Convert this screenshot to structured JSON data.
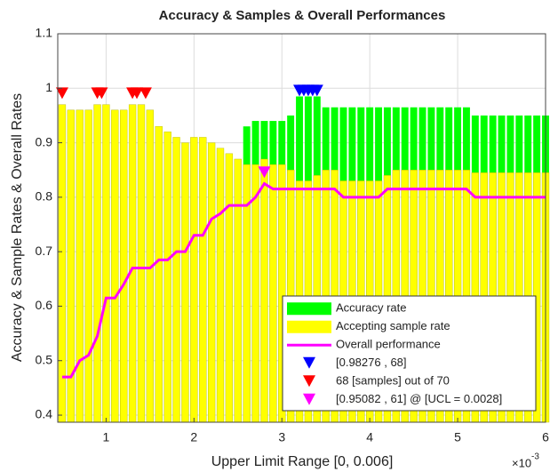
{
  "chart_data": {
    "type": "bar",
    "title": "Accuracy & Samples & Overall Performances",
    "xlabel": "Upper Limit Range [0, 0.006]",
    "ylabel": "Accuracy & Sample Rates & Overall Rates",
    "x_multiplier": {
      "base": "×10",
      "exponent": "-3"
    },
    "x": [
      0.5,
      0.6,
      0.7,
      0.8,
      0.9,
      1.0,
      1.1,
      1.2,
      1.3,
      1.4,
      1.5,
      1.6,
      1.7,
      1.8,
      1.9,
      2.0,
      2.1,
      2.2,
      2.3,
      2.4,
      2.5,
      2.6,
      2.7,
      2.8,
      2.9,
      3.0,
      3.1,
      3.2,
      3.3,
      3.4,
      3.5,
      3.6,
      3.7,
      3.8,
      3.9,
      4.0,
      4.1,
      4.2,
      4.3,
      4.4,
      4.5,
      4.6,
      4.7,
      4.8,
      4.9,
      5.0,
      5.1,
      5.2,
      5.3,
      5.4,
      5.5,
      5.6,
      5.7,
      5.8,
      5.9,
      6.0
    ],
    "series": [
      {
        "name": "Accuracy rate",
        "type": "bar",
        "color": "#00ff00",
        "values": [
          0.85,
          0.85,
          0.85,
          0.85,
          0.85,
          0.85,
          0.85,
          0.85,
          0.85,
          0.85,
          0.85,
          0.85,
          0.85,
          0.85,
          0.85,
          0.85,
          0.85,
          0.85,
          0.85,
          0.85,
          0.85,
          0.93,
          0.94,
          0.94,
          0.94,
          0.94,
          0.95,
          0.985,
          0.985,
          0.985,
          0.965,
          0.965,
          0.965,
          0.965,
          0.965,
          0.965,
          0.965,
          0.965,
          0.965,
          0.965,
          0.965,
          0.965,
          0.965,
          0.965,
          0.965,
          0.965,
          0.965,
          0.95,
          0.95,
          0.95,
          0.95,
          0.95,
          0.95,
          0.95,
          0.95,
          0.95
        ]
      },
      {
        "name": "Accepting sample rate",
        "type": "bar",
        "color": "#ffff00",
        "values": [
          0.97,
          0.96,
          0.96,
          0.96,
          0.97,
          0.97,
          0.96,
          0.96,
          0.97,
          0.97,
          0.96,
          0.93,
          0.92,
          0.91,
          0.9,
          0.91,
          0.91,
          0.9,
          0.89,
          0.88,
          0.87,
          0.86,
          0.86,
          0.87,
          0.86,
          0.86,
          0.85,
          0.83,
          0.83,
          0.84,
          0.85,
          0.85,
          0.83,
          0.83,
          0.83,
          0.83,
          0.83,
          0.84,
          0.85,
          0.85,
          0.85,
          0.85,
          0.85,
          0.85,
          0.85,
          0.85,
          0.85,
          0.845,
          0.845,
          0.845,
          0.845,
          0.845,
          0.845,
          0.845,
          0.845,
          0.845
        ]
      },
      {
        "name": "Overall performance",
        "type": "line",
        "color": "#ff00ff",
        "values": [
          0.47,
          0.47,
          0.5,
          0.51,
          0.545,
          0.615,
          0.615,
          0.64,
          0.67,
          0.67,
          0.67,
          0.685,
          0.685,
          0.7,
          0.7,
          0.73,
          0.73,
          0.76,
          0.77,
          0.785,
          0.785,
          0.785,
          0.8,
          0.825,
          0.815,
          0.815,
          0.815,
          0.815,
          0.815,
          0.815,
          0.815,
          0.815,
          0.8,
          0.8,
          0.8,
          0.8,
          0.8,
          0.815,
          0.815,
          0.815,
          0.815,
          0.815,
          0.815,
          0.815,
          0.815,
          0.815,
          0.815,
          0.8,
          0.8,
          0.8,
          0.8,
          0.8,
          0.8,
          0.8,
          0.8,
          0.8
        ]
      },
      {
        "name": "[0.98276 , 68]",
        "type": "marker",
        "color": "#0000ff",
        "x": [
          3.2,
          3.25,
          3.3,
          3.35,
          3.4
        ],
        "values": [
          0.995,
          0.995,
          0.995,
          0.995,
          0.995
        ]
      },
      {
        "name": "68 [samples] out of 70",
        "type": "marker",
        "color": "#ff0000",
        "x": [
          0.5,
          0.9,
          0.95,
          1.3,
          1.35,
          1.45
        ],
        "values": [
          0.99,
          0.99,
          0.99,
          0.99,
          0.99,
          0.99
        ]
      },
      {
        "name": "[0.95082 , 61] @ [UCL = 0.0028]",
        "type": "marker",
        "color": "#ff00ff",
        "x": [
          2.8
        ],
        "values": [
          0.845
        ]
      }
    ],
    "xlim": [
      0.45,
      6
    ],
    "ylim": [
      0.387,
      1.1
    ],
    "xticks": [
      1,
      2,
      3,
      4,
      5,
      6
    ],
    "yticks": [
      0.4,
      0.5,
      0.6,
      0.7,
      0.8,
      0.9,
      1,
      1.1
    ],
    "grid": true,
    "legend": "lower right"
  }
}
